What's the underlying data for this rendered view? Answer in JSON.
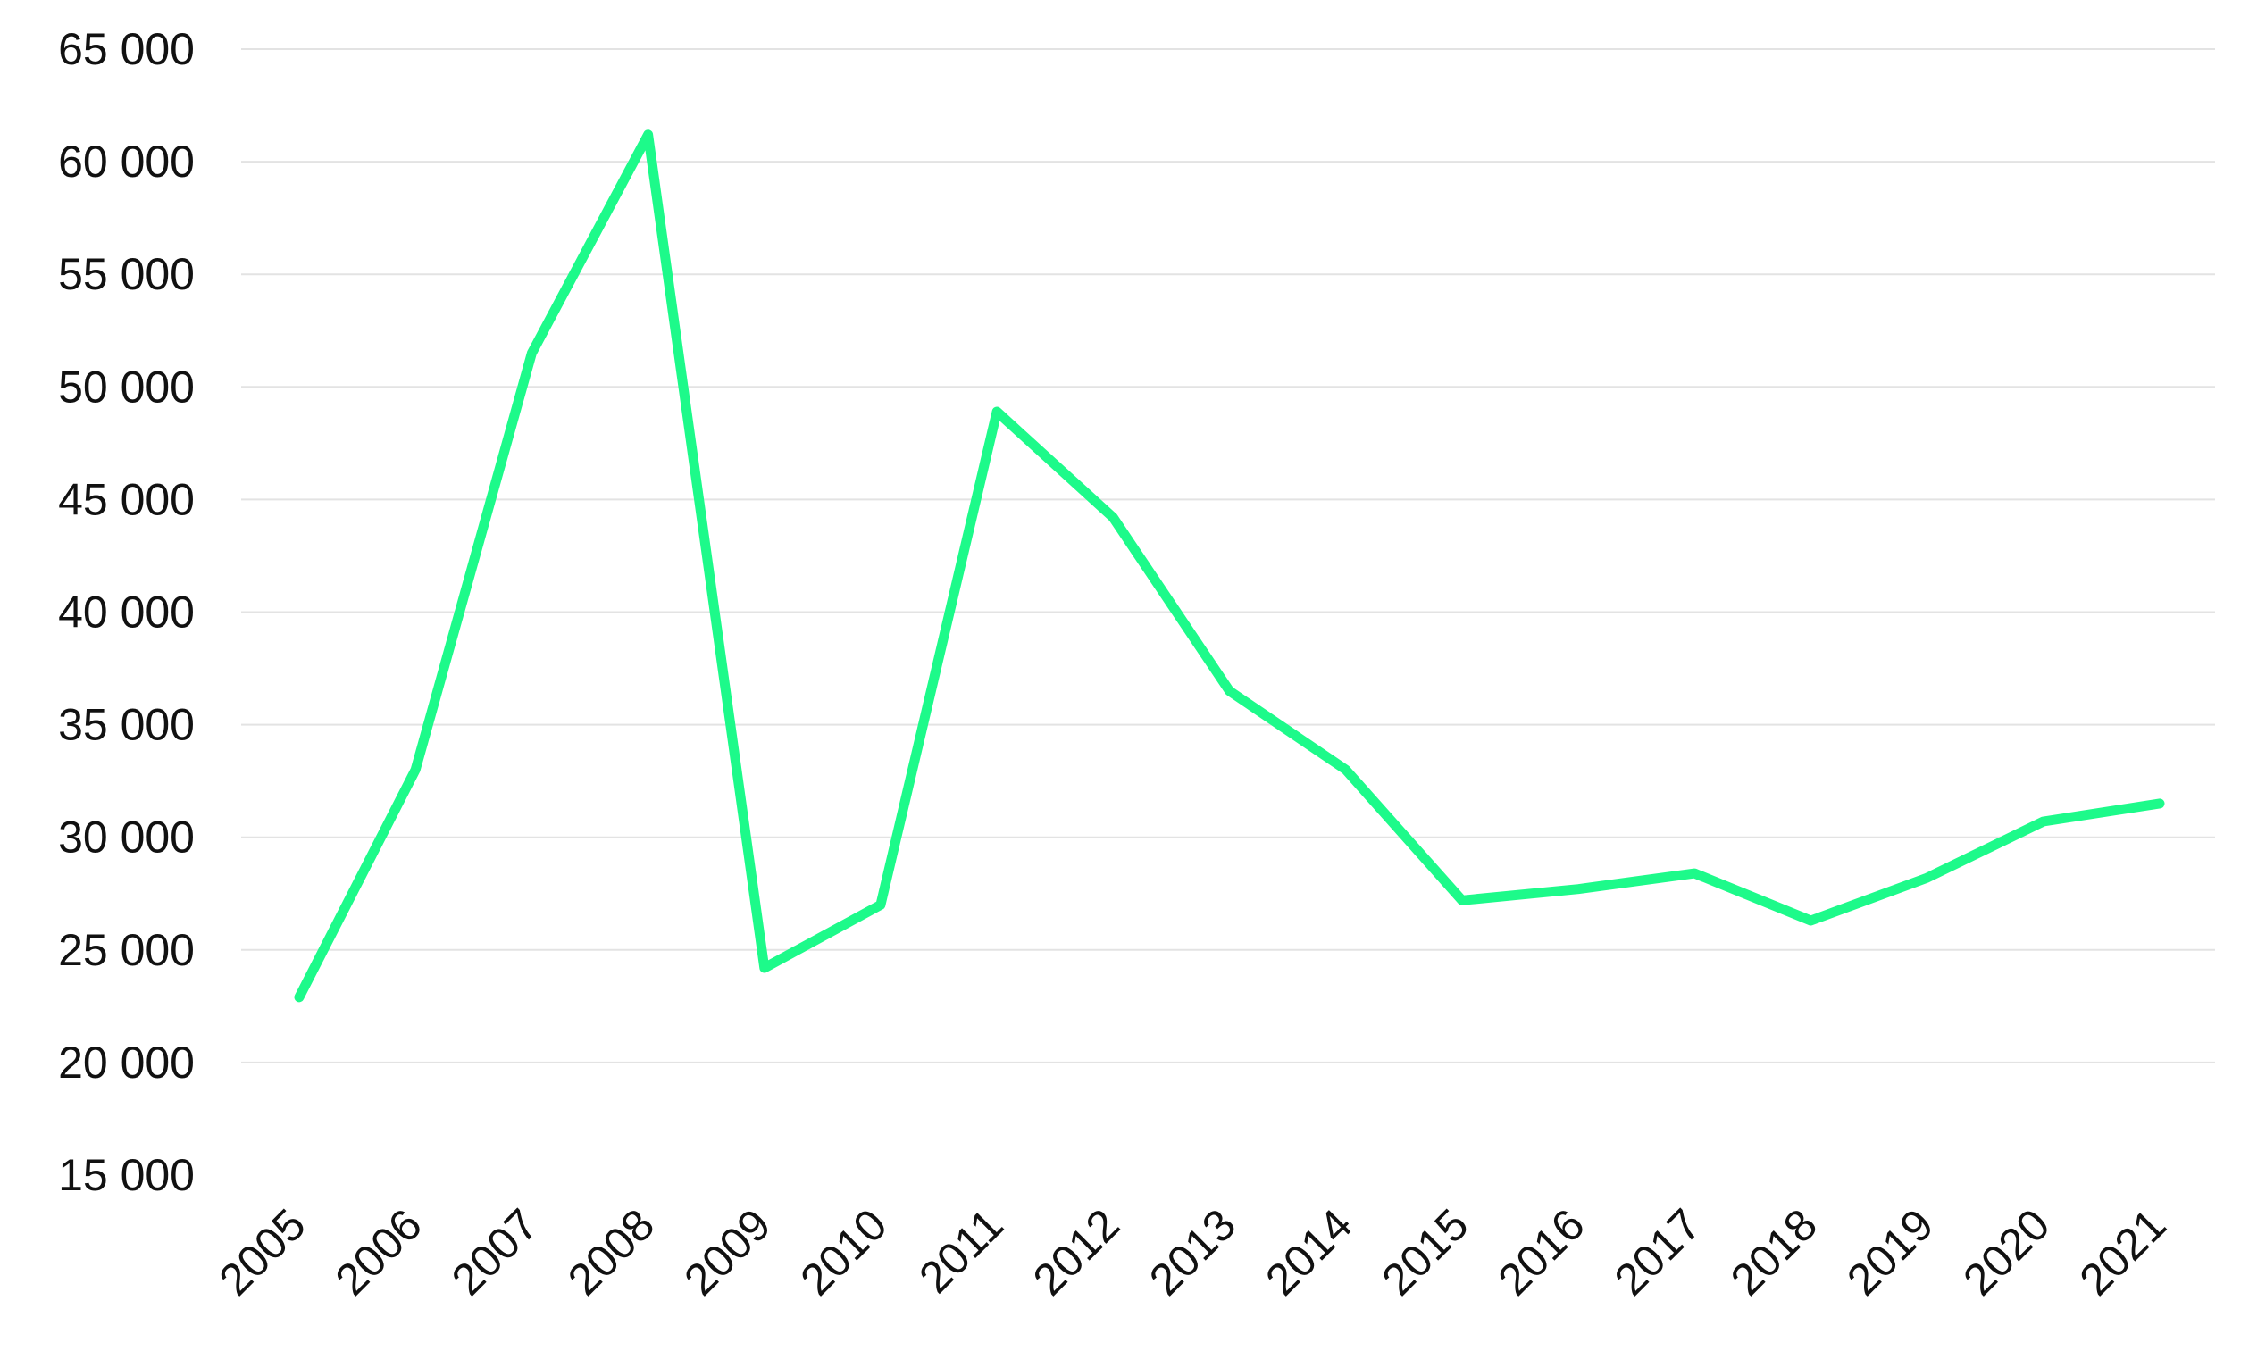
{
  "chart_data": {
    "type": "line",
    "title": "",
    "xlabel": "",
    "ylabel": "",
    "x": [
      "2005",
      "2006",
      "2007",
      "2008",
      "2009",
      "2010",
      "2011",
      "2012",
      "2013",
      "2014",
      "2015",
      "2016",
      "2017",
      "2018",
      "2019",
      "2020",
      "2021"
    ],
    "series": [
      {
        "values": [
          22900,
          33000,
          51500,
          61200,
          24200,
          27000,
          48900,
          44200,
          36500,
          33000,
          27200,
          27700,
          28400,
          26300,
          28200,
          30700,
          31500
        ]
      }
    ],
    "ylim": [
      15000,
      65000
    ],
    "yticks": [
      15000,
      20000,
      25000,
      30000,
      35000,
      40000,
      45000,
      50000,
      55000,
      60000,
      65000
    ],
    "ytick_labels": [
      "15 000",
      "20 000",
      "25 000",
      "30 000",
      "35 000",
      "40 000",
      "45 000",
      "50 000",
      "55 000",
      "60 000",
      "65 000"
    ],
    "grid": true,
    "legend": "none",
    "colors": {
      "line": "#1dfa8a",
      "grid": "#e3e3e3",
      "text": "#111111"
    }
  }
}
